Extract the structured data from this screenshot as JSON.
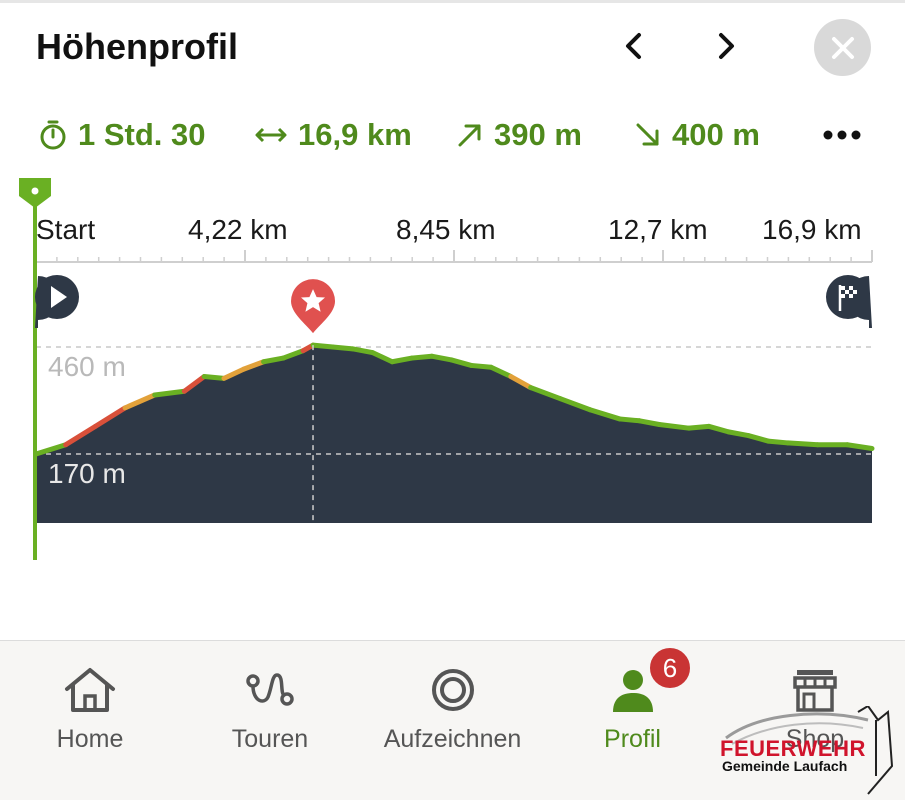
{
  "header": {
    "title": "Höhenprofil",
    "icons": {
      "prev": "chevron-left-icon",
      "next": "chevron-right-icon",
      "close": "close-icon"
    }
  },
  "stats": {
    "duration": "1 Std. 30",
    "distance": "16,9 km",
    "ascent": "390 m",
    "descent": "400 m",
    "color": "#4f8a1c"
  },
  "chart_data": {
    "type": "area",
    "x_unit": "km",
    "y_unit": "m",
    "x_tick_labels": [
      "Start",
      "4,22 km",
      "8,45 km",
      "12,7 km",
      "16,9 km"
    ],
    "y_reference_labels": [
      "460 m",
      "170 m"
    ],
    "xlim": [
      0,
      16.9
    ],
    "x": [
      0,
      0.6,
      1.2,
      1.8,
      2.4,
      3.0,
      3.4,
      3.8,
      4.2,
      4.6,
      5.0,
      5.4,
      5.6,
      6.0,
      6.4,
      6.8,
      7.2,
      7.6,
      8.0,
      8.4,
      8.8,
      9.2,
      9.6,
      10.0,
      10.6,
      11.2,
      11.8,
      12.2,
      12.6,
      13.2,
      13.6,
      14.0,
      14.4,
      14.8,
      15.2,
      15.8,
      16.4,
      16.9
    ],
    "y": [
      170,
      195,
      245,
      295,
      330,
      340,
      380,
      375,
      400,
      420,
      430,
      450,
      465,
      460,
      455,
      445,
      420,
      430,
      435,
      425,
      410,
      405,
      380,
      350,
      320,
      290,
      265,
      260,
      250,
      240,
      245,
      230,
      220,
      205,
      200,
      195,
      195,
      185
    ],
    "highlight_point": {
      "x": 5.6,
      "y": 465
    },
    "colors": {
      "fill": "#2e3846",
      "line_green": "#6ab023",
      "line_orange": "#e2a13a",
      "line_red": "#d9503a",
      "marker": "#6ab023",
      "summit": "#e0514f"
    }
  },
  "profile_markers": {
    "start_icon": "play-icon",
    "summit_icon": "star-pin-icon",
    "finish_icon": "finish-flag-icon"
  },
  "tabs": [
    {
      "label": "Home",
      "icon": "home-icon"
    },
    {
      "label": "Touren",
      "icon": "route-icon"
    },
    {
      "label": "Aufzeichnen",
      "icon": "record-icon"
    },
    {
      "label": "Profil",
      "icon": "user-icon",
      "badge": "6"
    },
    {
      "label": "Shop",
      "icon": "shop-icon"
    }
  ],
  "watermark": {
    "title": "FEUERWEHR",
    "subtitle": "Gemeinde Laufach"
  }
}
